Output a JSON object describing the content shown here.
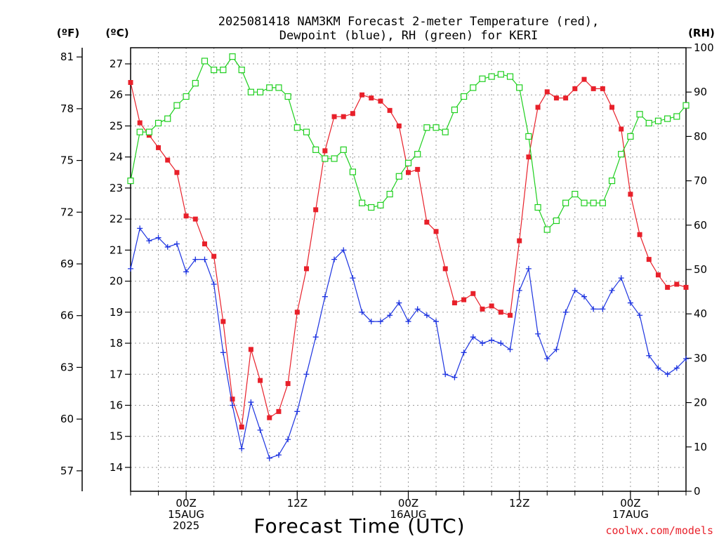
{
  "title_line1": "2025081418 NAM3KM Forecast 2-meter Temperature (red),",
  "title_line2": "Dewpoint (blue), RH (green) for KERI",
  "unit_f": "(ºF)",
  "unit_c": "(ºC)",
  "unit_rh": "(RH)",
  "credit": "coolwx.com/models",
  "colors": {
    "temperature": "#e8202a",
    "dewpoint": "#1c33e0",
    "rh": "#1ecf1e",
    "credit": "#e8202a",
    "grid": "#9a9a9a"
  },
  "chart_data": {
    "type": "line",
    "xlabel": "Forecast Time (UTC)",
    "x_unit": "forecast hour",
    "xlim": [
      0,
      60
    ],
    "x_ticks": [
      {
        "x": 6,
        "lines": [
          "00Z",
          "15AUG",
          "2025"
        ]
      },
      {
        "x": 18,
        "lines": [
          "12Z"
        ]
      },
      {
        "x": 30,
        "lines": [
          "00Z",
          "16AUG"
        ]
      },
      {
        "x": 42,
        "lines": [
          "12Z"
        ]
      },
      {
        "x": 54,
        "lines": [
          "00Z",
          "17AUG"
        ]
      }
    ],
    "left_axis_c": {
      "label": "(ºC)",
      "ylim": [
        13.23,
        27.52
      ],
      "ticks": [
        14,
        15,
        16,
        17,
        18,
        19,
        20,
        21,
        22,
        23,
        24,
        25,
        26,
        27
      ]
    },
    "left_axis_f": {
      "label": "(ºF)",
      "ticks": [
        57,
        60,
        63,
        66,
        69,
        72,
        75,
        78,
        81
      ]
    },
    "right_axis_rh": {
      "label": "(RH)",
      "ylim": [
        0,
        100
      ],
      "ticks": [
        0,
        10,
        20,
        30,
        40,
        50,
        60,
        70,
        80,
        90,
        100
      ]
    },
    "x": [
      0,
      1,
      2,
      3,
      4,
      5,
      6,
      7,
      8,
      9,
      10,
      11,
      12,
      13,
      14,
      15,
      16,
      17,
      18,
      19,
      20,
      21,
      22,
      23,
      24,
      25,
      26,
      27,
      28,
      29,
      30,
      31,
      32,
      33,
      34,
      35,
      36,
      37,
      38,
      39,
      40,
      41,
      42,
      43,
      44,
      45,
      46,
      47,
      48,
      49,
      50,
      51,
      52,
      53,
      54,
      55,
      56,
      57,
      58,
      59,
      60
    ],
    "series": [
      {
        "name": "2-meter Temperature",
        "axis": "celsius",
        "marker": "filled-square",
        "values": [
          26.4,
          25.1,
          24.7,
          24.3,
          23.9,
          23.5,
          22.1,
          22.0,
          21.2,
          20.8,
          18.7,
          16.2,
          15.3,
          17.8,
          16.8,
          15.6,
          15.8,
          16.7,
          19.0,
          20.4,
          22.3,
          24.2,
          25.3,
          25.3,
          25.4,
          26.0,
          25.9,
          25.8,
          25.5,
          25.0,
          23.5,
          23.6,
          21.9,
          21.6,
          20.4,
          19.3,
          19.4,
          19.6,
          19.1,
          19.2,
          19.0,
          18.9,
          21.3,
          24.0,
          25.6,
          26.1,
          25.9,
          25.9,
          26.2,
          26.5,
          26.2,
          26.2,
          25.6,
          24.9,
          22.8,
          21.5,
          20.7,
          20.2,
          19.8,
          19.9,
          19.8
        ]
      },
      {
        "name": "Dewpoint",
        "axis": "celsius",
        "marker": "plus",
        "values": [
          20.4,
          21.7,
          21.3,
          21.4,
          21.1,
          21.2,
          20.3,
          20.7,
          20.7,
          19.9,
          17.7,
          16.0,
          14.6,
          16.1,
          15.2,
          14.3,
          14.4,
          14.9,
          15.8,
          17.0,
          18.2,
          19.5,
          20.7,
          21.0,
          20.1,
          19.0,
          18.7,
          18.7,
          18.9,
          19.3,
          18.7,
          19.1,
          18.9,
          18.7,
          17.0,
          16.9,
          17.7,
          18.2,
          18.0,
          18.1,
          18.0,
          17.8,
          19.7,
          20.4,
          18.3,
          17.5,
          17.8,
          19.0,
          19.7,
          19.5,
          19.1,
          19.1,
          19.7,
          20.1,
          19.3,
          18.9,
          17.6,
          17.2,
          17.0,
          17.2,
          17.5
        ]
      },
      {
        "name": "RH",
        "axis": "rh",
        "marker": "open-square",
        "values": [
          70,
          81,
          81,
          83,
          84,
          87,
          89,
          92,
          97,
          95,
          95,
          98,
          95,
          90,
          90,
          91,
          91,
          89,
          82,
          81,
          77,
          75,
          75,
          77,
          72,
          65,
          64,
          64.5,
          67,
          71,
          74,
          76,
          82,
          82,
          81,
          86,
          89,
          91,
          93,
          93.5,
          94,
          93.5,
          91,
          80,
          64,
          59,
          61,
          65,
          67,
          65,
          65,
          65,
          70,
          76,
          80,
          85,
          83,
          83.5,
          84,
          84.5,
          87
        ]
      }
    ]
  }
}
